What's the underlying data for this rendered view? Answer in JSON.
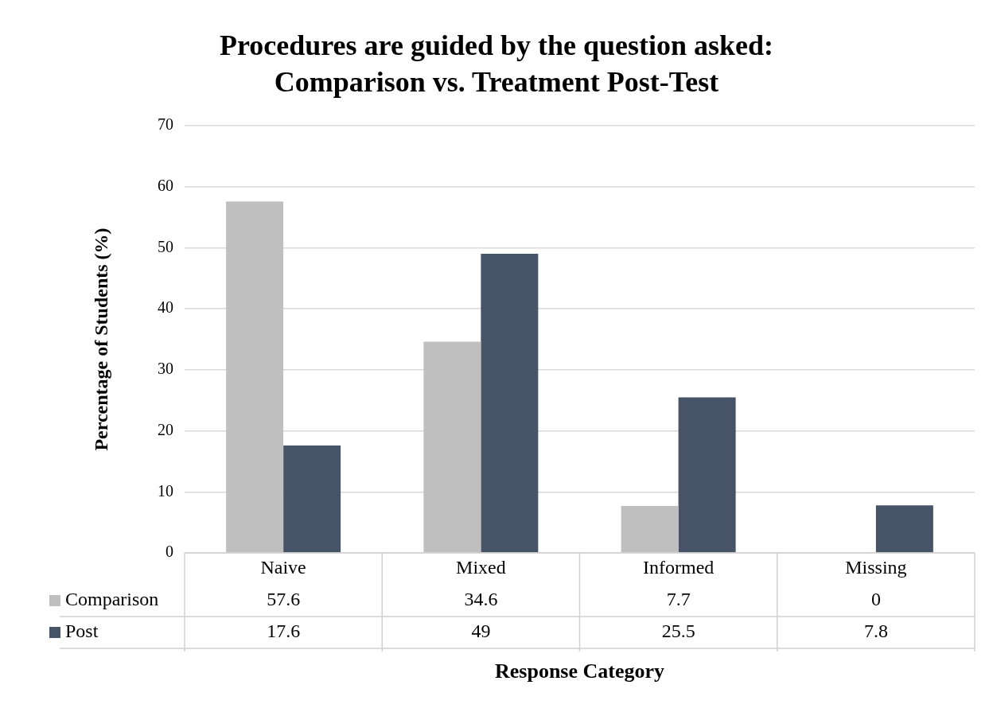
{
  "chart_data": {
    "type": "bar",
    "title": "Procedures are guided by the question asked: Comparison vs. Treatment Post-Test",
    "xlabel": "Response Category",
    "ylabel": "Percentage of Students (%)",
    "categories": [
      "Naive",
      "Mixed",
      "Informed",
      "Missing"
    ],
    "series": [
      {
        "name": "Comparison",
        "color": "#bfbfbf",
        "values": [
          57.6,
          34.6,
          7.7,
          0
        ]
      },
      {
        "name": "Post",
        "color": "#475366",
        "values": [
          17.6,
          49,
          25.5,
          7.8
        ]
      }
    ],
    "ylim": [
      0,
      70
    ],
    "yticks": [
      0,
      10,
      20,
      30,
      40,
      50,
      60,
      70
    ],
    "grid": "y",
    "legend": "bottom",
    "data_labels": true
  }
}
